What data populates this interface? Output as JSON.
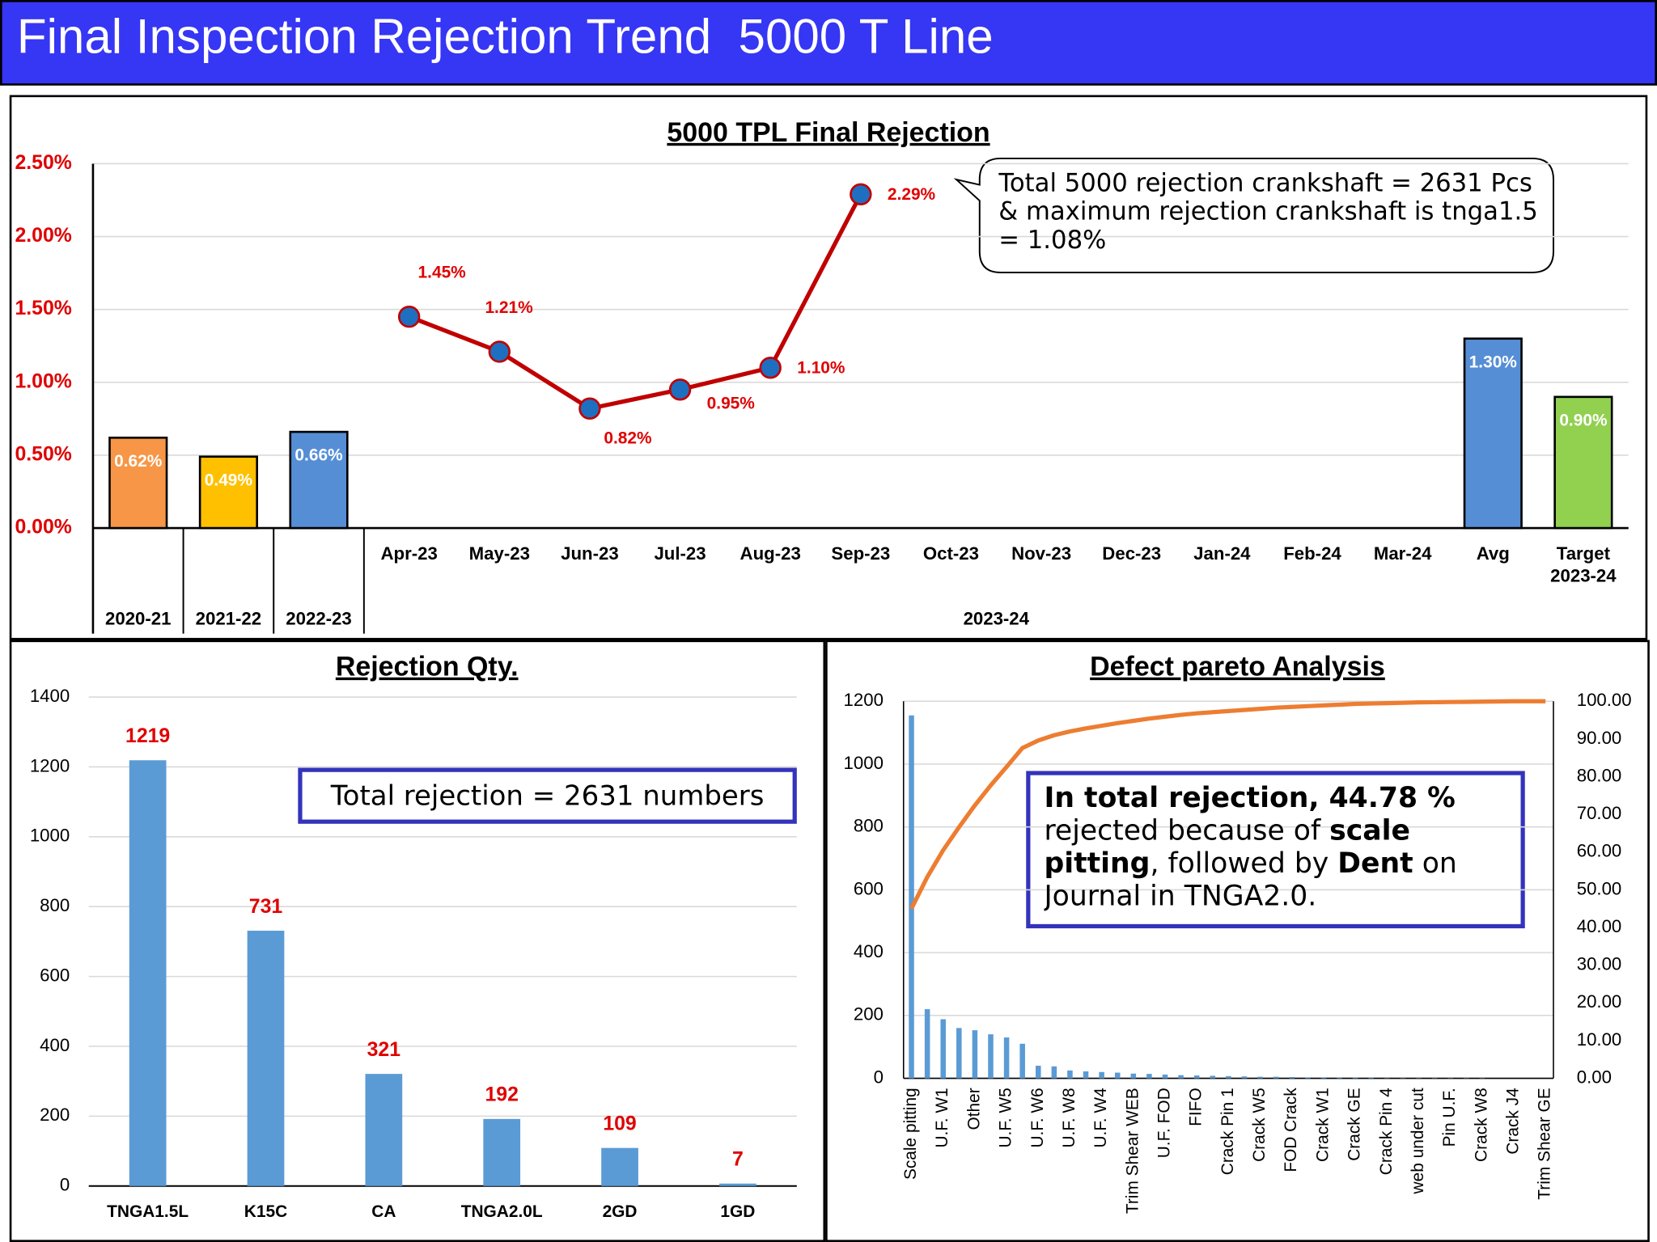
{
  "header": {
    "title": "Final Inspection Rejection Trend  5000 T Line"
  },
  "chart_data": [
    {
      "type": "combo",
      "title": "5000 TPL Final Rejection",
      "categories": [
        null,
        null,
        null,
        "Apr-23",
        "May-23",
        "Jun-23",
        "Jul-23",
        "Aug-23",
        "Sep-23",
        "Oct-23",
        "Nov-23",
        "Dec-23",
        "Jan-24",
        "Feb-24",
        "Mar-24",
        "Avg",
        "Target 2023-24"
      ],
      "groups": [
        {
          "label": "2020-21",
          "span": 1
        },
        {
          "label": "2021-22",
          "span": 1
        },
        {
          "label": "2022-23",
          "span": 1
        },
        {
          "label": "2023-24",
          "span": 14
        }
      ],
      "ylim": [
        0,
        2.5
      ],
      "yticks": [
        {
          "value": 0,
          "label": "0.00%"
        },
        {
          "value": 0.5,
          "label": "0.50%"
        },
        {
          "value": 1,
          "label": "1.00%"
        },
        {
          "value": 1.5,
          "label": "1.50%"
        },
        {
          "value": 2,
          "label": "2.00%"
        },
        {
          "value": 2.5,
          "label": "2.50%"
        }
      ],
      "grid": true,
      "series": [
        {
          "type": "bar",
          "colors": [
            "#f79646",
            "#ffc000",
            "#558ed5",
            null,
            null,
            null,
            null,
            null,
            null,
            null,
            null,
            null,
            null,
            null,
            null,
            "#558ed5",
            "#92d050"
          ],
          "values": [
            0.62,
            0.49,
            0.66,
            null,
            null,
            null,
            null,
            null,
            null,
            null,
            null,
            null,
            null,
            null,
            null,
            1.3,
            0.9
          ],
          "value_labels": [
            "0.62%",
            "0.49%",
            "0.66%",
            null,
            null,
            null,
            null,
            null,
            null,
            null,
            null,
            null,
            null,
            null,
            null,
            "1.30%",
            "0.90%"
          ]
        },
        {
          "type": "line",
          "color": "#c00000",
          "marker_color": "#1f6fc0",
          "values": [
            null,
            null,
            null,
            1.45,
            1.21,
            0.82,
            0.95,
            1.1,
            2.29,
            null,
            null,
            null,
            null,
            null,
            null,
            null,
            null
          ],
          "value_labels": [
            null,
            null,
            null,
            "1.45%",
            "1.21%",
            "0.82%",
            "0.95%",
            "1.10%",
            "2.29%",
            null,
            null,
            null,
            null,
            null,
            null,
            null,
            null
          ]
        }
      ],
      "annotation": "Total 5000 rejection crankshaft = 2631 Pcs & maximum rejection crankshaft is tnga1.5 = 1.08%"
    },
    {
      "type": "bar",
      "title": "Rejection Qty.",
      "categories": [
        "TNGA1.5L",
        "K15C",
        "CA",
        "TNGA2.0L",
        "2GD",
        "1GD"
      ],
      "values": [
        1219,
        731,
        321,
        192,
        109,
        7
      ],
      "color": "#5b9bd5",
      "label_color": "#e00000",
      "ylim": [
        0,
        1400
      ],
      "yticks": [
        0,
        200,
        400,
        600,
        800,
        1000,
        1200,
        1400
      ],
      "grid": true,
      "annotation": "Total rejection = 2631 numbers"
    },
    {
      "type": "pareto",
      "title": "Defect pareto Analysis",
      "categories": [
        "Scale pitting",
        null,
        "U.F. W1",
        null,
        "Other",
        null,
        "U.F. W5",
        null,
        "U.F. W6",
        null,
        "U.F. W8",
        null,
        "U.F. W4",
        null,
        "Trim Shear WEB",
        null,
        "U.F. FOD",
        null,
        "FIFO",
        null,
        "Crack Pin 1",
        null,
        "Crack W5",
        null,
        "FOD Crack",
        null,
        "Crack W1",
        null,
        "Crack GE",
        null,
        "Crack Pin 4",
        null,
        "web under cut",
        null,
        "Pin U.F.",
        null,
        "Crack W8",
        null,
        "Crack J4",
        null,
        "Trim Shear GE"
      ],
      "ylim": [
        0,
        1200
      ],
      "yticks": [
        0,
        200,
        400,
        600,
        800,
        1000,
        1200
      ],
      "y2lim": [
        0,
        100
      ],
      "y2ticks": [
        {
          "value": 0,
          "label": "0.00"
        },
        {
          "value": 10,
          "label": "10.00"
        },
        {
          "value": 20,
          "label": "20.00"
        },
        {
          "value": 30,
          "label": "30.00"
        },
        {
          "value": 40,
          "label": "40.00"
        },
        {
          "value": 50,
          "label": "50.00"
        },
        {
          "value": 60,
          "label": "60.00"
        },
        {
          "value": 70,
          "label": "70.00"
        },
        {
          "value": 80,
          "label": "80.00"
        },
        {
          "value": 90,
          "label": "90.00"
        },
        {
          "value": 100,
          "label": "100.00"
        }
      ],
      "grid": true,
      "series": [
        {
          "type": "bar",
          "color": "#5b9bd5",
          "values": [
            1155,
            220,
            188,
            160,
            153,
            140,
            130,
            110,
            40,
            38,
            25,
            22,
            20,
            18,
            15,
            14,
            12,
            10,
            9,
            8,
            7,
            6,
            5,
            5,
            4,
            3,
            3,
            2,
            2,
            2,
            1,
            1,
            1,
            1,
            1,
            1,
            1,
            0,
            0,
            0,
            0
          ]
        },
        {
          "type": "line",
          "axis": "y2",
          "color": "#ed7d31",
          "values": [
            45,
            53.4,
            60.5,
            66.6,
            72.4,
            77.7,
            82.6,
            87.6,
            89.6,
            91,
            92,
            92.8,
            93.5,
            94.2,
            94.8,
            95.4,
            95.9,
            96.4,
            96.8,
            97.1,
            97.4,
            97.7,
            98,
            98.3,
            98.5,
            98.7,
            98.9,
            99.1,
            99.3,
            99.4,
            99.5,
            99.6,
            99.7,
            99.75,
            99.8,
            99.85,
            99.9,
            99.95,
            100,
            100,
            100
          ]
        }
      ],
      "annotation": [
        {
          "text": "In total rejection, 44.78 %",
          "bold": true
        },
        {
          "text": " rejected because of ",
          "bold": false
        },
        {
          "text": "scale pitting",
          "bold": true
        },
        {
          "text": ", followed by ",
          "bold": false
        },
        {
          "text": "Dent",
          "bold": true
        },
        {
          "text": " on Journal in TNGA2.0.",
          "bold": false
        }
      ]
    }
  ]
}
